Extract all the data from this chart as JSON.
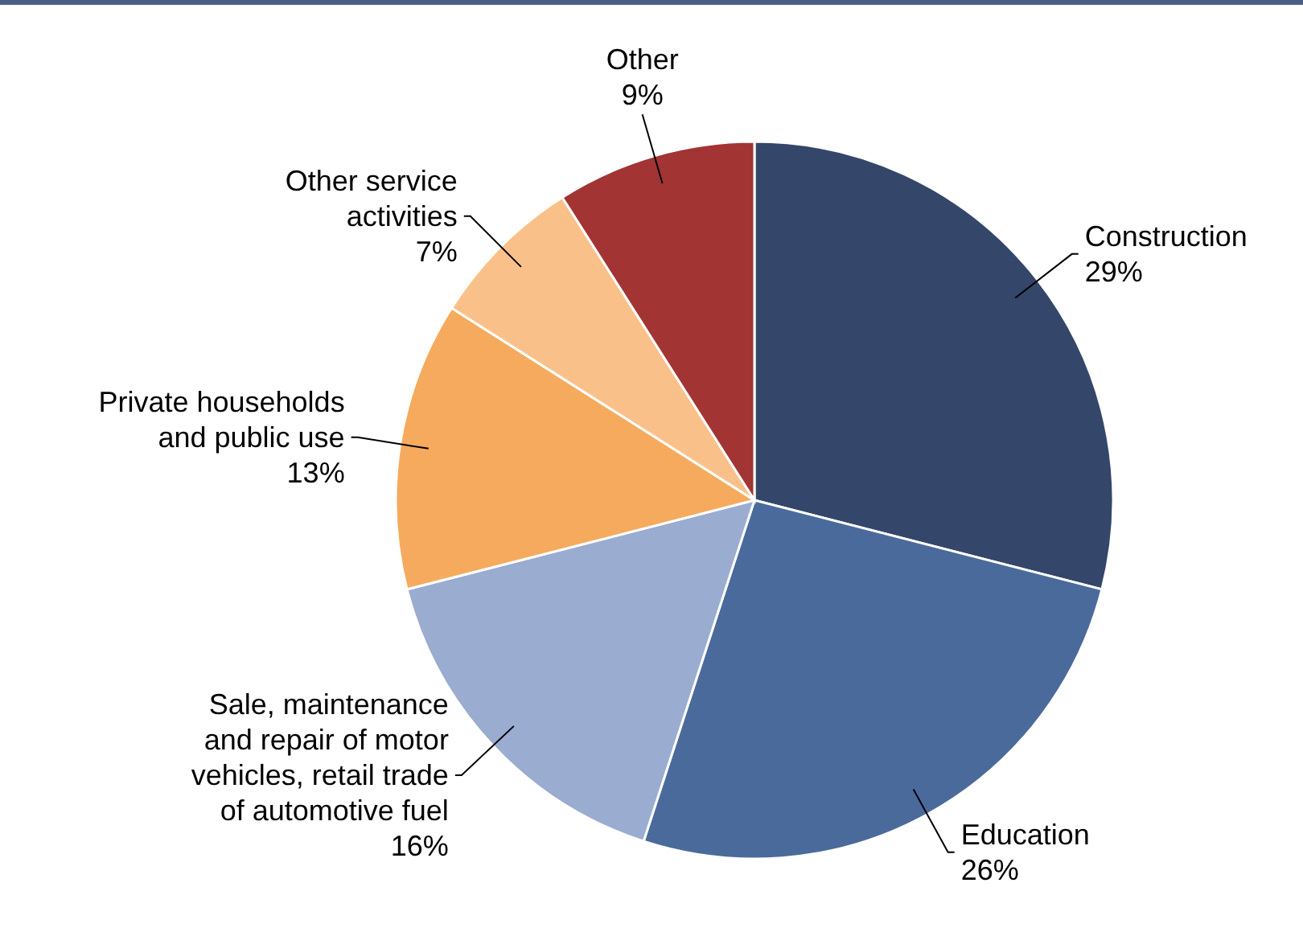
{
  "chart_data": {
    "type": "pie",
    "categories": [
      "Construction",
      "Education",
      "Sale, maintenance and repair of motor vehicles, retail trade of automotive fuel",
      "Private households and public use",
      "Other service activities",
      "Other"
    ],
    "values": [
      29,
      26,
      16,
      13,
      7,
      9
    ],
    "colors": [
      "#34466a",
      "#4b6a9c",
      "#9aaccf",
      "#f6aa5d",
      "#f9c189",
      "#a33434"
    ],
    "value_labels": [
      "29%",
      "26%",
      "16%",
      "13%",
      "7%",
      "9%"
    ]
  }
}
